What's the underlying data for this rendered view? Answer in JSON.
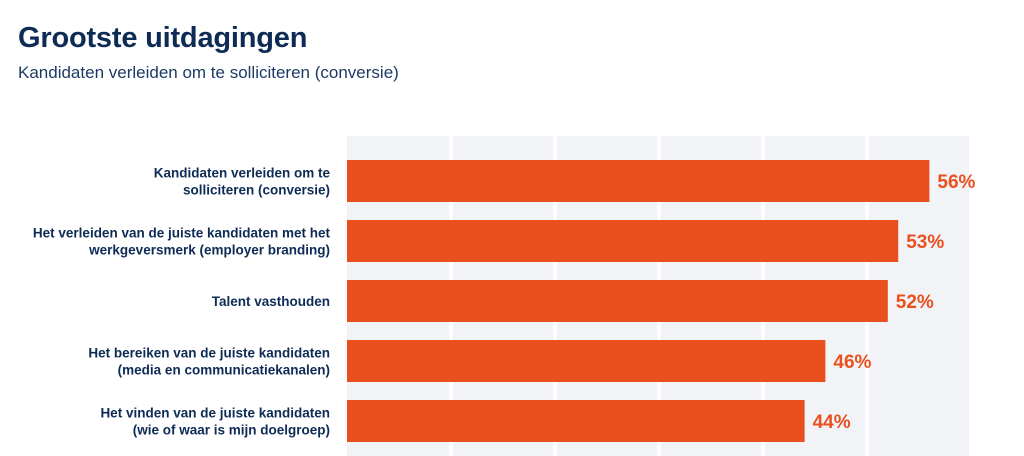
{
  "chart_data": {
    "type": "bar",
    "orientation": "horizontal",
    "title": "Grootste uitdagingen",
    "subtitle": "Kandidaten verleiden om te solliciteren (conversie)",
    "categories": [
      [
        "Kandidaten verleiden om te",
        "solliciteren (conversie)"
      ],
      [
        "Het verleiden van de juiste kandidaten met het",
        "werkgeversmerk (employer branding)"
      ],
      [
        "Talent vasthouden"
      ],
      [
        "Het bereiken van de juiste kandidaten",
        "(media en communicatiekanalen)"
      ],
      [
        "Het vinden van de juiste kandidaten",
        "(wie of waar is mijn doelgroep)"
      ]
    ],
    "values": [
      56,
      53,
      52,
      46,
      44
    ],
    "value_labels": [
      "56%",
      "53%",
      "52%",
      "46%",
      "44%"
    ],
    "unit": "%",
    "xlim": [
      0,
      60
    ],
    "grid": true,
    "grid_step": 10,
    "bar_color": "#e9501e",
    "label_color": "#e9501e",
    "text_color": "#0d2b55",
    "grid_color": "#f1f3f6"
  }
}
